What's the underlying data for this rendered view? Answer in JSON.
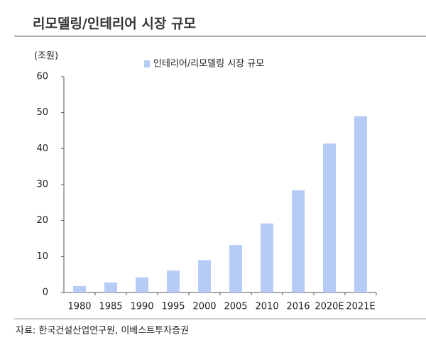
{
  "chart_data": {
    "type": "bar",
    "title": "리모델링/인테리어 시장 규모",
    "y_label": "(조원)",
    "categories": [
      "1980",
      "1985",
      "1990",
      "1995",
      "2000",
      "2005",
      "2010",
      "2016",
      "2020E",
      "2021E"
    ],
    "series": [
      {
        "name": "인테리어/리모델링 시장 규모",
        "color": "#b7cbf7",
        "values": [
          1.8,
          2.8,
          4.2,
          6.1,
          9.0,
          13.2,
          19.2,
          28.4,
          41.4,
          49.0
        ]
      }
    ],
    "ylim": [
      0,
      60
    ],
    "yticks": [
      0,
      10,
      20,
      30,
      40,
      50,
      60
    ],
    "grid": false,
    "source": "자료: 한국건설산업연구원, 이베스트투자증권"
  }
}
